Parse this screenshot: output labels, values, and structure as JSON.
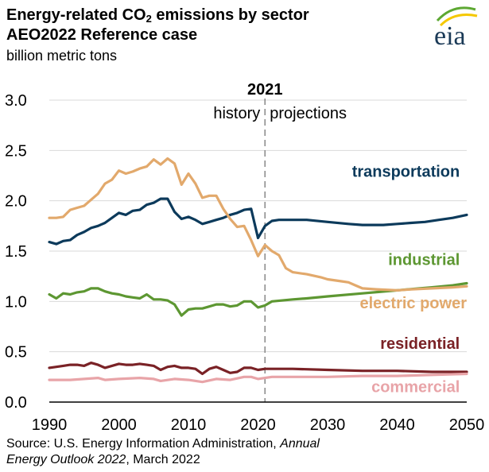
{
  "header": {
    "title_pre": "Energy-related CO",
    "title_sub": "2",
    "title_post": " emissions by sector",
    "subtitle": "AEO2022 Reference case",
    "units": "billion metric tons"
  },
  "logo": {
    "text": "eia",
    "colors": {
      "arc_green": "#5da832",
      "arc_yellow": "#f5c800",
      "text": "#1b3a57"
    }
  },
  "source": {
    "prefix": "Source: U.S. Energy Information Administration, ",
    "italic1": "Annual",
    "italic2": "Energy Outlook 2022",
    "suffix": ", March 2022"
  },
  "chart_data": {
    "type": "line",
    "title": "Energy-related CO2 emissions by sector — AEO2022 Reference case",
    "ylabel": "billion metric tons",
    "xlabel": "",
    "xlim": [
      1990,
      2050
    ],
    "ylim": [
      0,
      3
    ],
    "x_ticks": [
      1990,
      2000,
      2010,
      2020,
      2030,
      2040,
      2050
    ],
    "y_ticks": [
      0.0,
      0.5,
      1.0,
      1.5,
      2.0,
      2.5,
      3.0
    ],
    "x_tick_labels": [
      "1990",
      "2000",
      "2010",
      "2020",
      "2030",
      "2040",
      "2050"
    ],
    "y_tick_labels": [
      "0.0",
      "0.5",
      "1.0",
      "1.5",
      "2.0",
      "2.5",
      "3.0"
    ],
    "grid": "horizontal",
    "divider": {
      "year": 2021,
      "label": "2021",
      "left_label": "history",
      "right_label": "projections"
    },
    "series": [
      {
        "name": "transportation",
        "color": "#0c3a5b",
        "points": [
          [
            1990,
            1.59
          ],
          [
            1991,
            1.57
          ],
          [
            1992,
            1.6
          ],
          [
            1993,
            1.61
          ],
          [
            1994,
            1.66
          ],
          [
            1995,
            1.69
          ],
          [
            1996,
            1.73
          ],
          [
            1997,
            1.75
          ],
          [
            1998,
            1.78
          ],
          [
            1999,
            1.83
          ],
          [
            2000,
            1.88
          ],
          [
            2001,
            1.86
          ],
          [
            2002,
            1.9
          ],
          [
            2003,
            1.91
          ],
          [
            2004,
            1.96
          ],
          [
            2005,
            1.98
          ],
          [
            2006,
            2.02
          ],
          [
            2007,
            2.02
          ],
          [
            2008,
            1.89
          ],
          [
            2009,
            1.82
          ],
          [
            2010,
            1.84
          ],
          [
            2011,
            1.81
          ],
          [
            2012,
            1.77
          ],
          [
            2013,
            1.79
          ],
          [
            2014,
            1.81
          ],
          [
            2015,
            1.83
          ],
          [
            2016,
            1.86
          ],
          [
            2017,
            1.88
          ],
          [
            2018,
            1.91
          ],
          [
            2019,
            1.92
          ],
          [
            2020,
            1.63
          ],
          [
            2021,
            1.75
          ],
          [
            2022,
            1.8
          ],
          [
            2023,
            1.81
          ],
          [
            2025,
            1.81
          ],
          [
            2027,
            1.81
          ],
          [
            2030,
            1.79
          ],
          [
            2033,
            1.77
          ],
          [
            2035,
            1.76
          ],
          [
            2038,
            1.76
          ],
          [
            2040,
            1.77
          ],
          [
            2042,
            1.78
          ],
          [
            2044,
            1.79
          ],
          [
            2046,
            1.81
          ],
          [
            2048,
            1.83
          ],
          [
            2050,
            1.86
          ]
        ]
      },
      {
        "name": "industrial",
        "color": "#5d9732",
        "points": [
          [
            1990,
            1.07
          ],
          [
            1991,
            1.03
          ],
          [
            1992,
            1.08
          ],
          [
            1993,
            1.07
          ],
          [
            1994,
            1.09
          ],
          [
            1995,
            1.1
          ],
          [
            1996,
            1.13
          ],
          [
            1997,
            1.13
          ],
          [
            1998,
            1.1
          ],
          [
            1999,
            1.08
          ],
          [
            2000,
            1.07
          ],
          [
            2001,
            1.05
          ],
          [
            2002,
            1.04
          ],
          [
            2003,
            1.03
          ],
          [
            2004,
            1.07
          ],
          [
            2005,
            1.02
          ],
          [
            2006,
            1.02
          ],
          [
            2007,
            1.01
          ],
          [
            2008,
            0.97
          ],
          [
            2009,
            0.86
          ],
          [
            2010,
            0.92
          ],
          [
            2011,
            0.93
          ],
          [
            2012,
            0.93
          ],
          [
            2013,
            0.95
          ],
          [
            2014,
            0.97
          ],
          [
            2015,
            0.97
          ],
          [
            2016,
            0.95
          ],
          [
            2017,
            0.96
          ],
          [
            2018,
            1.0
          ],
          [
            2019,
            1.0
          ],
          [
            2020,
            0.94
          ],
          [
            2021,
            0.96
          ],
          [
            2022,
            1.0
          ],
          [
            2025,
            1.02
          ],
          [
            2027,
            1.03
          ],
          [
            2030,
            1.05
          ],
          [
            2035,
            1.08
          ],
          [
            2040,
            1.11
          ],
          [
            2045,
            1.14
          ],
          [
            2048,
            1.16
          ],
          [
            2050,
            1.18
          ]
        ]
      },
      {
        "name": "electric power",
        "color": "#e2a96c",
        "points": [
          [
            1990,
            1.83
          ],
          [
            1991,
            1.83
          ],
          [
            1992,
            1.84
          ],
          [
            1993,
            1.91
          ],
          [
            1994,
            1.93
          ],
          [
            1995,
            1.95
          ],
          [
            1996,
            2.01
          ],
          [
            1997,
            2.07
          ],
          [
            1998,
            2.17
          ],
          [
            1999,
            2.21
          ],
          [
            2000,
            2.3
          ],
          [
            2001,
            2.27
          ],
          [
            2002,
            2.29
          ],
          [
            2003,
            2.32
          ],
          [
            2004,
            2.34
          ],
          [
            2005,
            2.41
          ],
          [
            2006,
            2.36
          ],
          [
            2007,
            2.42
          ],
          [
            2008,
            2.37
          ],
          [
            2009,
            2.16
          ],
          [
            2010,
            2.27
          ],
          [
            2011,
            2.17
          ],
          [
            2012,
            2.03
          ],
          [
            2013,
            2.05
          ],
          [
            2014,
            2.05
          ],
          [
            2015,
            1.92
          ],
          [
            2016,
            1.82
          ],
          [
            2017,
            1.74
          ],
          [
            2018,
            1.75
          ],
          [
            2019,
            1.61
          ],
          [
            2020,
            1.45
          ],
          [
            2021,
            1.56
          ],
          [
            2022,
            1.5
          ],
          [
            2023,
            1.46
          ],
          [
            2024,
            1.33
          ],
          [
            2025,
            1.29
          ],
          [
            2027,
            1.27
          ],
          [
            2029,
            1.24
          ],
          [
            2030,
            1.22
          ],
          [
            2032,
            1.2
          ],
          [
            2033,
            1.19
          ],
          [
            2034,
            1.16
          ],
          [
            2035,
            1.13
          ],
          [
            2037,
            1.12
          ],
          [
            2040,
            1.11
          ],
          [
            2042,
            1.12
          ],
          [
            2045,
            1.13
          ],
          [
            2048,
            1.14
          ],
          [
            2050,
            1.15
          ]
        ]
      },
      {
        "name": "residential",
        "color": "#7a2226",
        "points": [
          [
            1990,
            0.34
          ],
          [
            1991,
            0.35
          ],
          [
            1992,
            0.36
          ],
          [
            1993,
            0.37
          ],
          [
            1994,
            0.37
          ],
          [
            1995,
            0.36
          ],
          [
            1996,
            0.39
          ],
          [
            1997,
            0.37
          ],
          [
            1998,
            0.34
          ],
          [
            1999,
            0.36
          ],
          [
            2000,
            0.38
          ],
          [
            2001,
            0.37
          ],
          [
            2002,
            0.37
          ],
          [
            2003,
            0.38
          ],
          [
            2004,
            0.37
          ],
          [
            2005,
            0.36
          ],
          [
            2006,
            0.32
          ],
          [
            2007,
            0.35
          ],
          [
            2008,
            0.36
          ],
          [
            2009,
            0.34
          ],
          [
            2010,
            0.34
          ],
          [
            2011,
            0.33
          ],
          [
            2012,
            0.28
          ],
          [
            2013,
            0.33
          ],
          [
            2014,
            0.35
          ],
          [
            2015,
            0.32
          ],
          [
            2016,
            0.29
          ],
          [
            2017,
            0.3
          ],
          [
            2018,
            0.34
          ],
          [
            2019,
            0.34
          ],
          [
            2020,
            0.32
          ],
          [
            2021,
            0.33
          ],
          [
            2025,
            0.33
          ],
          [
            2030,
            0.32
          ],
          [
            2035,
            0.31
          ],
          [
            2040,
            0.31
          ],
          [
            2045,
            0.3
          ],
          [
            2050,
            0.3
          ]
        ]
      },
      {
        "name": "commercial",
        "color": "#e8a4a8",
        "points": [
          [
            1990,
            0.22
          ],
          [
            1993,
            0.22
          ],
          [
            1995,
            0.23
          ],
          [
            1997,
            0.24
          ],
          [
            1998,
            0.22
          ],
          [
            2000,
            0.23
          ],
          [
            2003,
            0.24
          ],
          [
            2005,
            0.23
          ],
          [
            2006,
            0.21
          ],
          [
            2008,
            0.23
          ],
          [
            2010,
            0.22
          ],
          [
            2012,
            0.2
          ],
          [
            2014,
            0.23
          ],
          [
            2016,
            0.22
          ],
          [
            2018,
            0.25
          ],
          [
            2019,
            0.25
          ],
          [
            2020,
            0.23
          ],
          [
            2021,
            0.24
          ],
          [
            2022,
            0.25
          ],
          [
            2025,
            0.25
          ],
          [
            2030,
            0.25
          ],
          [
            2035,
            0.26
          ],
          [
            2040,
            0.26
          ],
          [
            2045,
            0.27
          ],
          [
            2050,
            0.28
          ]
        ]
      }
    ],
    "labels": [
      {
        "text": "transportation",
        "color": "#0c3a5b",
        "x": 2049,
        "y": 2.24,
        "anchor": "end"
      },
      {
        "text": "industrial",
        "color": "#5d9732",
        "x": 2049,
        "y": 1.36,
        "anchor": "end"
      },
      {
        "text": "electric power",
        "color": "#e2a96c",
        "x": 2050,
        "y": 0.93,
        "anchor": "end"
      },
      {
        "text": "residential",
        "color": "#7a2226",
        "x": 2049,
        "y": 0.53,
        "anchor": "end"
      },
      {
        "text": "commercial",
        "color": "#e8a4a8",
        "x": 2049,
        "y": 0.1,
        "anchor": "end"
      }
    ]
  }
}
